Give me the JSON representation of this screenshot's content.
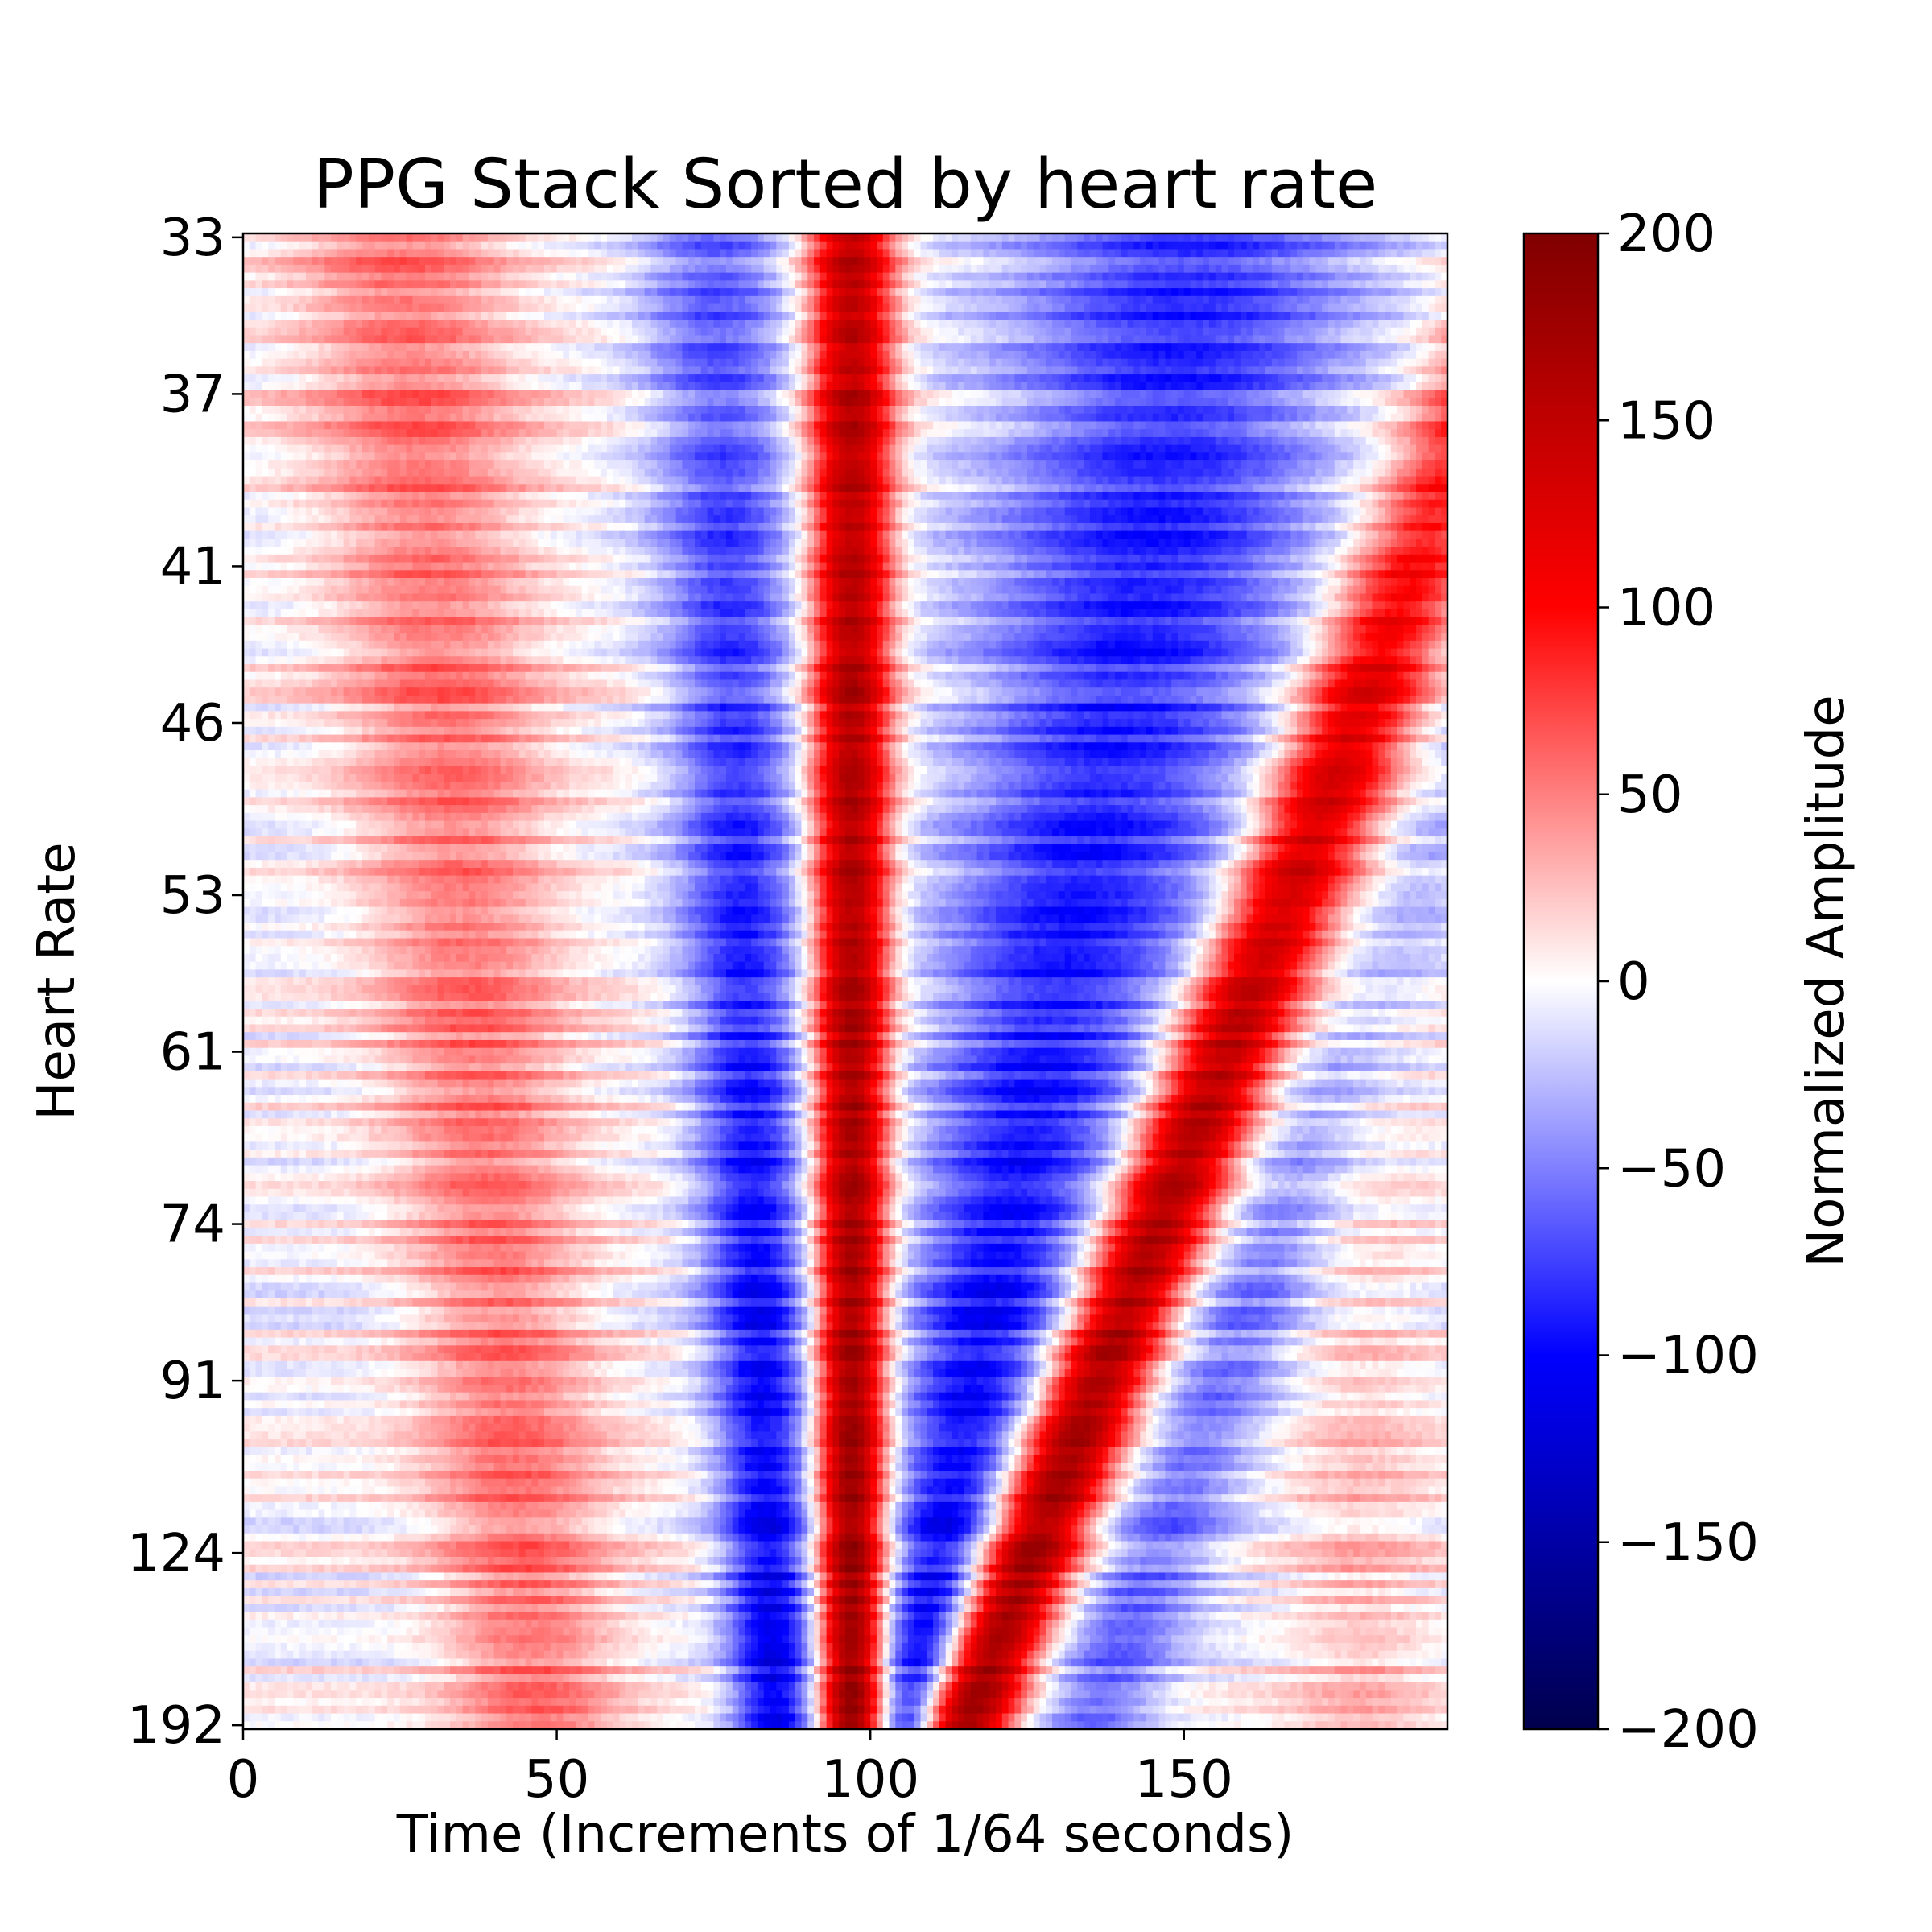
{
  "chart_data": {
    "type": "heatmap",
    "title": "PPG Stack Sorted by heart rate",
    "xlabel": "Time (Increments of 1/64 seconds)",
    "ylabel": "Heart Rate",
    "xlim": [
      0,
      192
    ],
    "x_ticks": [
      "0",
      "50",
      "100",
      "150"
    ],
    "x_tick_values": [
      0,
      50,
      100,
      150
    ],
    "y_tick_labels": [
      "33",
      "37",
      "41",
      "46",
      "53",
      "61",
      "74",
      "91",
      "124",
      "192"
    ],
    "y_tick_rows": [
      0,
      20,
      42,
      62,
      84,
      104,
      126,
      146,
      168,
      190
    ],
    "y_rows": 191,
    "colormap": "seismic",
    "colors": [
      "#00004c",
      "#0000ff",
      "#ffffff",
      "#ff0000",
      "#800000"
    ],
    "colorbar": {
      "label": "Normalized Amplitude",
      "range": [
        -200,
        200
      ],
      "ticks": [
        "−200",
        "−150",
        "−100",
        "−50",
        "0",
        "50",
        "100",
        "150",
        "200"
      ],
      "tick_values": [
        -200,
        -150,
        -100,
        -50,
        0,
        50,
        100,
        150,
        200
      ]
    },
    "structure": {
      "description_rows": "rows sorted by heart rate from 33 (top) to 192 (bottom)",
      "main_peak_center_time": 97,
      "main_peak_peak_amplitude": 190,
      "secondary_peak_center_time_top": 207,
      "secondary_peak_center_time_bottom": 115,
      "secondary_peak_peak_amplitude": 175,
      "trough_amplitude": -110
    }
  }
}
